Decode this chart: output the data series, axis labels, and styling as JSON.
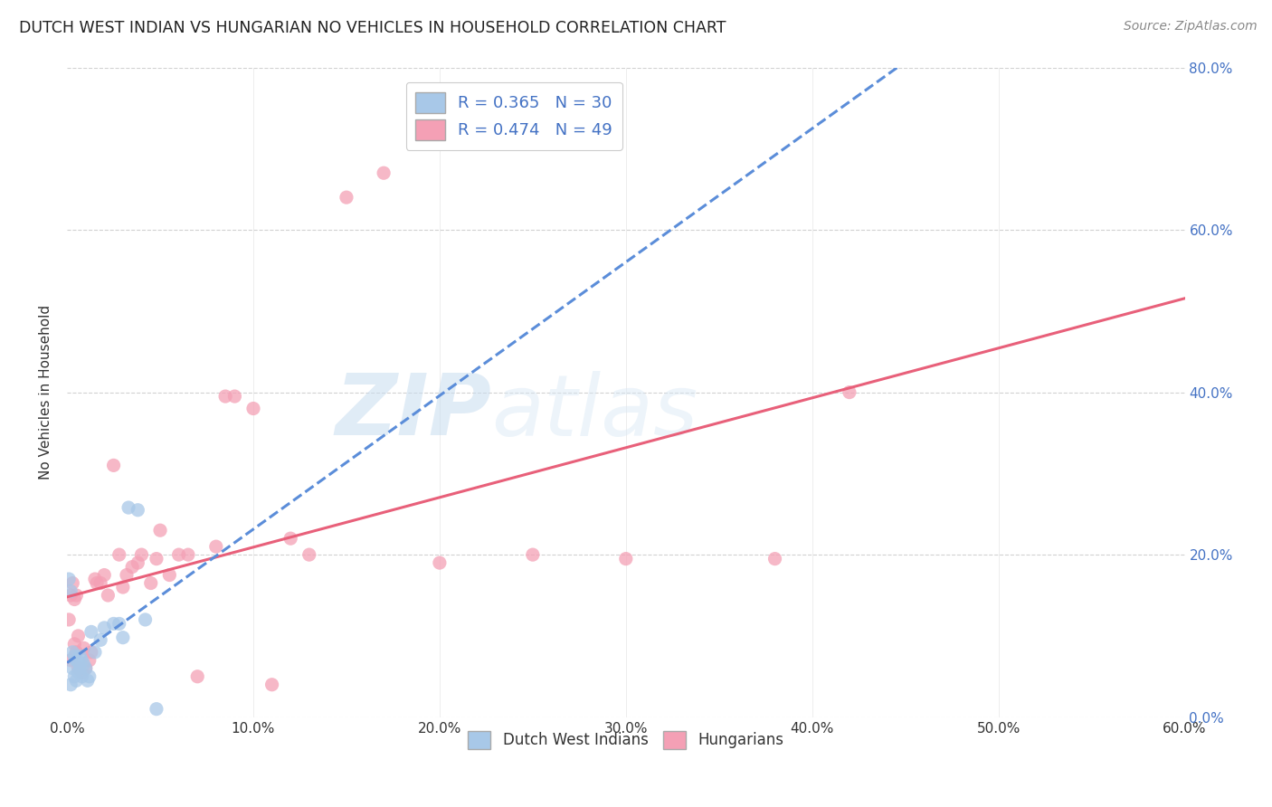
{
  "title": "DUTCH WEST INDIAN VS HUNGARIAN NO VEHICLES IN HOUSEHOLD CORRELATION CHART",
  "source": "Source: ZipAtlas.com",
  "xlim": [
    0.0,
    0.6
  ],
  "ylim": [
    0.0,
    0.8
  ],
  "ylabel": "No Vehicles in Household",
  "watermark_zip": "ZIP",
  "watermark_atlas": "atlas",
  "legend_label1": "R = 0.365   N = 30",
  "legend_label2": "R = 0.474   N = 49",
  "legend_label3": "Dutch West Indians",
  "legend_label4": "Hungarians",
  "color_blue": "#a8c8e8",
  "color_pink": "#f4a0b5",
  "color_blue_line": "#5b8dd9",
  "color_pink_line": "#e8607a",
  "color_text_blue": "#4472c4",
  "background_color": "#ffffff",
  "grid_color": "#cccccc",
  "dutch_x": [
    0.001,
    0.002,
    0.002,
    0.003,
    0.003,
    0.004,
    0.004,
    0.005,
    0.005,
    0.006,
    0.006,
    0.007,
    0.007,
    0.008,
    0.008,
    0.009,
    0.01,
    0.011,
    0.012,
    0.013,
    0.015,
    0.018,
    0.02,
    0.025,
    0.028,
    0.03,
    0.033,
    0.038,
    0.042,
    0.048
  ],
  "dutch_y": [
    0.17,
    0.155,
    0.04,
    0.08,
    0.06,
    0.075,
    0.05,
    0.07,
    0.045,
    0.068,
    0.055,
    0.075,
    0.06,
    0.07,
    0.05,
    0.065,
    0.06,
    0.045,
    0.05,
    0.105,
    0.08,
    0.095,
    0.11,
    0.115,
    0.115,
    0.098,
    0.258,
    0.255,
    0.12,
    0.01
  ],
  "hungarian_x": [
    0.001,
    0.002,
    0.002,
    0.003,
    0.004,
    0.004,
    0.005,
    0.005,
    0.006,
    0.006,
    0.007,
    0.008,
    0.009,
    0.01,
    0.012,
    0.013,
    0.015,
    0.016,
    0.018,
    0.02,
    0.022,
    0.025,
    0.028,
    0.03,
    0.032,
    0.035,
    0.038,
    0.04,
    0.045,
    0.048,
    0.05,
    0.055,
    0.06,
    0.065,
    0.07,
    0.08,
    0.085,
    0.09,
    0.1,
    0.11,
    0.12,
    0.13,
    0.15,
    0.17,
    0.2,
    0.25,
    0.3,
    0.38,
    0.42
  ],
  "hungarian_y": [
    0.12,
    0.15,
    0.07,
    0.165,
    0.145,
    0.09,
    0.15,
    0.08,
    0.1,
    0.06,
    0.06,
    0.055,
    0.085,
    0.06,
    0.07,
    0.08,
    0.17,
    0.165,
    0.165,
    0.175,
    0.15,
    0.31,
    0.2,
    0.16,
    0.175,
    0.185,
    0.19,
    0.2,
    0.165,
    0.195,
    0.23,
    0.175,
    0.2,
    0.2,
    0.05,
    0.21,
    0.395,
    0.395,
    0.38,
    0.04,
    0.22,
    0.2,
    0.64,
    0.67,
    0.19,
    0.2,
    0.195,
    0.195,
    0.4
  ]
}
